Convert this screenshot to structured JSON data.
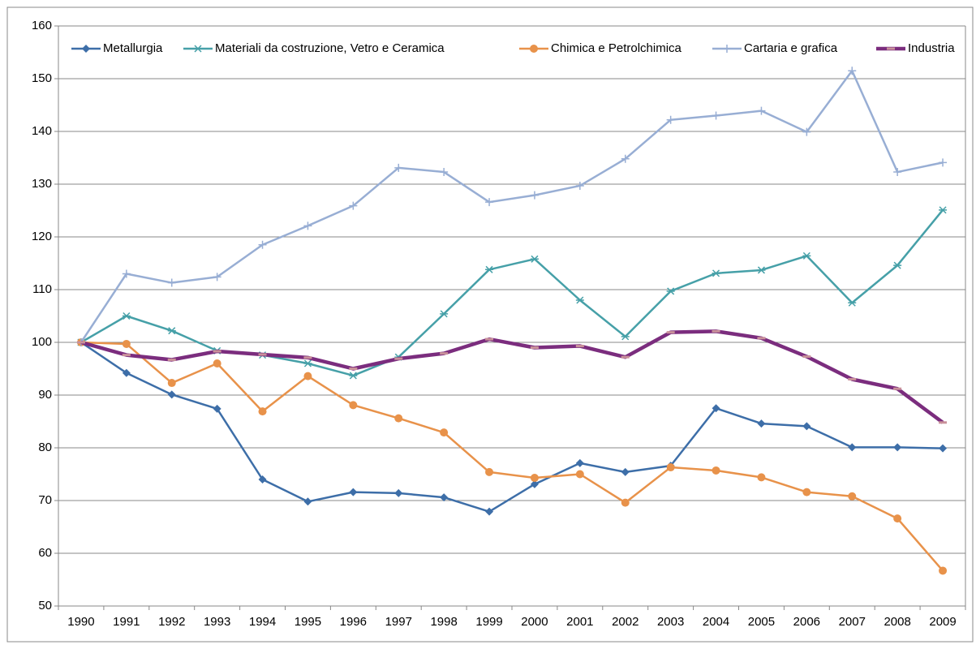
{
  "chart_data": {
    "type": "line",
    "categories": [
      "1990",
      "1991",
      "1992",
      "1993",
      "1994",
      "1995",
      "1996",
      "1997",
      "1998",
      "1999",
      "2000",
      "2001",
      "2002",
      "2003",
      "2004",
      "2005",
      "2006",
      "2007",
      "2008",
      "2009"
    ],
    "series": [
      {
        "name": "Metallurgia",
        "color": "#3d6ea8",
        "marker": "diamond",
        "values": [
          100,
          94.2,
          90.1,
          87.4,
          74.0,
          69.8,
          71.6,
          71.4,
          70.6,
          67.9,
          73.1,
          77.1,
          75.4,
          76.6,
          87.5,
          84.6,
          84.1,
          80.1,
          80.1,
          79.9
        ]
      },
      {
        "name": "Materiali da costruzione, Vetro e Ceramica",
        "color": "#46a0a8",
        "marker": "asterisk",
        "values": [
          100,
          105.0,
          102.2,
          98.4,
          97.6,
          96.0,
          93.7,
          97.2,
          105.4,
          113.8,
          115.8,
          108.0,
          101.1,
          109.7,
          113.1,
          113.7,
          116.4,
          107.5,
          114.6,
          125.1
        ]
      },
      {
        "name": "Chimica e Petrolchimica",
        "color": "#e8924a",
        "marker": "circle",
        "values": [
          100,
          99.7,
          92.3,
          96.0,
          86.9,
          93.6,
          88.1,
          85.6,
          82.9,
          75.4,
          74.3,
          75.0,
          69.6,
          76.3,
          75.7,
          74.4,
          71.6,
          70.8,
          66.6,
          56.7
        ]
      },
      {
        "name": "Cartaria e grafica",
        "color": "#98aed4",
        "marker": "plus",
        "values": [
          100,
          113.0,
          111.3,
          112.4,
          118.5,
          122.1,
          125.9,
          133.1,
          132.3,
          126.6,
          127.9,
          129.7,
          134.8,
          142.2,
          143.0,
          143.9,
          139.9,
          151.5,
          132.3,
          134.1
        ]
      },
      {
        "name": "Industria",
        "color": "#7b2d7e",
        "marker": "dash",
        "values": [
          100,
          97.6,
          96.7,
          98.3,
          97.7,
          97.1,
          95.0,
          96.9,
          97.9,
          100.6,
          99.0,
          99.3,
          97.2,
          101.9,
          102.1,
          100.8,
          97.3,
          93.0,
          91.2,
          84.8
        ]
      }
    ],
    "ylim": [
      50,
      160
    ],
    "yticks": [
      50,
      60,
      70,
      80,
      90,
      100,
      110,
      120,
      130,
      140,
      150,
      160
    ],
    "grid": true,
    "legend": "top"
  }
}
